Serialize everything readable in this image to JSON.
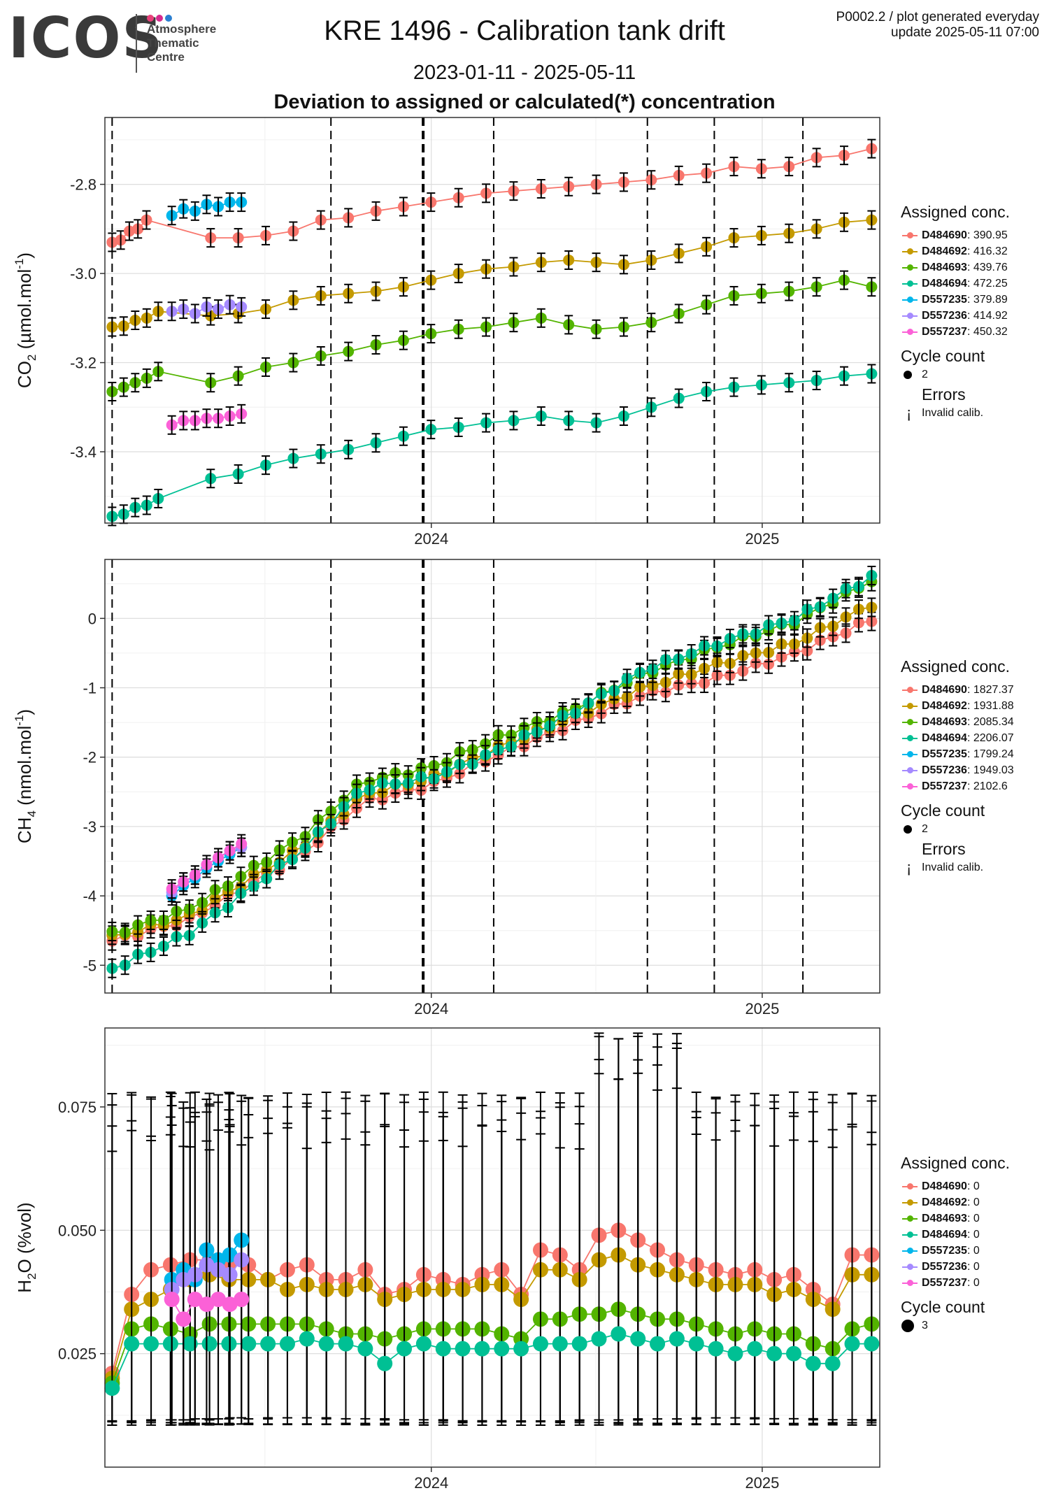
{
  "header": {
    "logo_text": "ICOS",
    "logo_lines": [
      "Atmosphere",
      "Thematic",
      "Centre"
    ],
    "logo_dot_colors": [
      "#e8417a",
      "#d62a8f",
      "#2b7fd1"
    ],
    "title": "KRE 1496 - Calibration tank drift",
    "date_range": "2023-01-11 - 2025-05-11",
    "subtitle": "Deviation to assigned or calculated(*) concentration",
    "gen_line1": "P0002.2 / plot generated everyday",
    "gen_line2": "update  2025-05-11 07:00"
  },
  "series_colors": {
    "D484690": "#F8766D",
    "D484692": "#C49A00",
    "D484693": "#53B400",
    "D484694": "#00C094",
    "D557235": "#00B6EB",
    "D557236": "#A58AFF",
    "D557237": "#FB61D7"
  },
  "chart_data": [
    {
      "type": "line",
      "ylabel": "CO2 (µmol.mol-1)",
      "ylabel_parts": {
        "pre": "CO",
        "sub": "2",
        "mid": " (µmol.mol",
        "sup": "-1",
        "post": ")"
      },
      "x_ticks": [
        "2024",
        "2025"
      ],
      "y_ticks": [
        -2.8,
        -3.0,
        -3.2,
        -3.4
      ],
      "y_tick_labels": [
        "-2.8",
        "-3.0",
        "-3.2",
        "-3.4"
      ],
      "ylim": [
        -3.56,
        -2.65
      ],
      "grid": true,
      "legend_position": "right",
      "vlines": [
        "2023-01-13",
        "2023-09-12",
        "2023-12-23",
        "2024-03-10",
        "2024-08-27",
        "2024-11-09",
        "2025-02-15"
      ],
      "vline_heavy": "2023-12-23",
      "series": [
        {
          "name": "D484690",
          "x0": "2023-01-13",
          "x1": "2023-02-20",
          "x2": "2023-05-02",
          "x3": "2025-05-02",
          "y": [
            -2.93,
            -2.925,
            -2.905,
            -2.9,
            -2.88
          ],
          "yb": [
            -2.92,
            -2.92,
            -2.915,
            -2.905,
            -2.88,
            -2.875,
            -2.86,
            -2.85,
            -2.84,
            -2.83,
            -2.82,
            -2.815,
            -2.81,
            -2.805,
            -2.8,
            -2.795,
            -2.79,
            -2.78,
            -2.775,
            -2.76,
            -2.765,
            -2.76,
            -2.74,
            -2.735,
            -2.72
          ]
        },
        {
          "name": "D484692",
          "y": [
            -3.12,
            -3.118,
            -3.105,
            -3.1,
            -3.085
          ],
          "yb": [
            -3.095,
            -3.09,
            -3.08,
            -3.06,
            -3.05,
            -3.045,
            -3.04,
            -3.03,
            -3.015,
            -3.0,
            -2.99,
            -2.985,
            -2.975,
            -2.97,
            -2.975,
            -2.98,
            -2.97,
            -2.955,
            -2.94,
            -2.92,
            -2.915,
            -2.91,
            -2.9,
            -2.885,
            -2.88
          ]
        },
        {
          "name": "D484693",
          "y": [
            -3.265,
            -3.255,
            -3.245,
            -3.235,
            -3.22
          ],
          "yb": [
            -3.245,
            -3.23,
            -3.21,
            -3.2,
            -3.185,
            -3.175,
            -3.16,
            -3.15,
            -3.135,
            -3.125,
            -3.12,
            -3.11,
            -3.1,
            -3.115,
            -3.125,
            -3.12,
            -3.11,
            -3.09,
            -3.07,
            -3.05,
            -3.045,
            -3.04,
            -3.03,
            -3.015,
            -3.03
          ]
        },
        {
          "name": "D484694",
          "y": [
            -3.545,
            -3.54,
            -3.525,
            -3.52,
            -3.505
          ],
          "yb": [
            -3.46,
            -3.45,
            -3.43,
            -3.415,
            -3.405,
            -3.395,
            -3.38,
            -3.365,
            -3.35,
            -3.345,
            -3.335,
            -3.33,
            -3.32,
            -3.33,
            -3.335,
            -3.32,
            -3.3,
            -3.28,
            -3.265,
            -3.255,
            -3.25,
            -3.245,
            -3.24,
            -3.23,
            -3.225
          ]
        },
        {
          "name": "D557235",
          "x0": "2023-03-20",
          "x1": "2023-06-05",
          "y": [
            -2.87,
            -2.855,
            -2.86,
            -2.845,
            -2.85,
            -2.84,
            -2.84
          ]
        },
        {
          "name": "D557236",
          "x0": "2023-03-20",
          "x1": "2023-06-05",
          "y": [
            -3.085,
            -3.08,
            -3.09,
            -3.075,
            -3.08,
            -3.07,
            -3.075
          ]
        },
        {
          "name": "D557237",
          "x0": "2023-03-20",
          "x1": "2023-06-05",
          "y": [
            -3.34,
            -3.33,
            -3.33,
            -3.325,
            -3.325,
            -3.32,
            -3.315
          ]
        }
      ],
      "legend": {
        "title": "Assigned conc.",
        "items": [
          {
            "name": "D484690",
            "value": ": 390.95"
          },
          {
            "name": "D484692",
            "value": ": 416.32"
          },
          {
            "name": "D484693",
            "value": ": 439.76"
          },
          {
            "name": "D484694",
            "value": ": 472.25"
          },
          {
            "name": "D557235",
            "value": ": 379.89"
          },
          {
            "name": "D557236",
            "value": ": 414.92"
          },
          {
            "name": "D557237",
            "value": ": 450.32"
          }
        ],
        "cycle_title": "Cycle count",
        "cycle_value": "2",
        "errors_title": "Errors",
        "errors_value": "Invalid calib."
      }
    },
    {
      "type": "line",
      "ylabel": "CH4 (nmol.mol-1)",
      "ylabel_parts": {
        "pre": "CH",
        "sub": "4",
        "mid": " (nmol.mol",
        "sup": "-1",
        "post": ")"
      },
      "x_ticks": [
        "2024",
        "2025"
      ],
      "y_ticks": [
        0,
        -1,
        -2,
        -3,
        -4,
        -5
      ],
      "y_tick_labels": [
        "0",
        "-1",
        "-2",
        "-3",
        "-4",
        "-5"
      ],
      "ylim": [
        -5.4,
        0.85
      ],
      "grid": true,
      "legend_position": "right",
      "vlines": [
        "2023-01-13",
        "2023-09-12",
        "2023-12-23",
        "2024-03-10",
        "2024-08-27",
        "2024-11-09",
        "2025-02-15"
      ],
      "vline_heavy": "2023-12-23",
      "series": [
        {
          "name": "D484690",
          "x0": "2023-01-13",
          "x1": "2025-05-02",
          "points": [
            [
              0,
              -4.65
            ],
            [
              0.1,
              -4.35
            ],
            [
              0.25,
              -3.4
            ],
            [
              0.33,
              -2.65
            ],
            [
              0.42,
              -2.4
            ],
            [
              0.5,
              -2.0
            ],
            [
              0.6,
              -1.55
            ],
            [
              0.7,
              -1.1
            ],
            [
              0.8,
              -0.85
            ],
            [
              0.9,
              -0.5
            ],
            [
              1.0,
              -0.02
            ]
          ]
        },
        {
          "name": "D484692",
          "points": [
            [
              0,
              -4.6
            ],
            [
              0.1,
              -4.3
            ],
            [
              0.25,
              -3.3
            ],
            [
              0.33,
              -2.55
            ],
            [
              0.42,
              -2.3
            ],
            [
              0.5,
              -1.9
            ],
            [
              0.6,
              -1.45
            ],
            [
              0.7,
              -1.0
            ],
            [
              0.8,
              -0.65
            ],
            [
              0.9,
              -0.35
            ],
            [
              1.0,
              0.2
            ]
          ]
        },
        {
          "name": "D484693",
          "points": [
            [
              0,
              -4.55
            ],
            [
              0.1,
              -4.2
            ],
            [
              0.25,
              -3.15
            ],
            [
              0.33,
              -2.35
            ],
            [
              0.42,
              -2.15
            ],
            [
              0.5,
              -1.75
            ],
            [
              0.6,
              -1.35
            ],
            [
              0.7,
              -0.8
            ],
            [
              0.8,
              -0.4
            ],
            [
              0.9,
              -0.05
            ],
            [
              1.0,
              0.55
            ]
          ]
        },
        {
          "name": "D484694",
          "points": [
            [
              0,
              -5.05
            ],
            [
              0.1,
              -4.55
            ],
            [
              0.25,
              -3.35
            ],
            [
              0.33,
              -2.45
            ],
            [
              0.42,
              -2.3
            ],
            [
              0.5,
              -1.95
            ],
            [
              0.6,
              -1.4
            ],
            [
              0.7,
              -0.75
            ],
            [
              0.8,
              -0.35
            ],
            [
              0.9,
              0.0
            ],
            [
              1.0,
              0.6
            ]
          ]
        },
        {
          "name": "D557235",
          "x0": "2023-03-20",
          "x1": "2023-06-05",
          "y": [
            -4.0,
            -3.85,
            -3.75,
            -3.6,
            -3.5,
            -3.4,
            -3.3
          ]
        },
        {
          "name": "D557236",
          "x0": "2023-03-20",
          "x1": "2023-06-05",
          "y": [
            -3.95,
            -3.8,
            -3.7,
            -3.55,
            -3.45,
            -3.35,
            -3.3
          ]
        },
        {
          "name": "D557237",
          "x0": "2023-03-20",
          "x1": "2023-06-05",
          "y": [
            -3.9,
            -3.8,
            -3.7,
            -3.55,
            -3.45,
            -3.35,
            -3.25
          ]
        }
      ],
      "legend": {
        "title": "Assigned conc.",
        "items": [
          {
            "name": "D484690",
            "value": ": 1827.37"
          },
          {
            "name": "D484692",
            "value": ": 1931.88"
          },
          {
            "name": "D484693",
            "value": ": 2085.34"
          },
          {
            "name": "D484694",
            "value": ": 2206.07"
          },
          {
            "name": "D557235",
            "value": ": 1799.24"
          },
          {
            "name": "D557236",
            "value": ": 1949.03"
          },
          {
            "name": "D557237",
            "value": ": 2102.6"
          }
        ],
        "cycle_title": "Cycle count",
        "cycle_value": "2",
        "errors_title": "Errors",
        "errors_value": "Invalid calib."
      }
    },
    {
      "type": "line",
      "ylabel": "H2O (%vol)",
      "ylabel_parts": {
        "pre": "H",
        "sub": "2",
        "mid": "O (%vol)",
        "sup": "",
        "post": ""
      },
      "x_ticks": [
        "2024",
        "2025"
      ],
      "y_ticks": [
        0.025,
        0.05,
        0.075
      ],
      "y_tick_labels": [
        "0.025",
        "0.050",
        "0.075"
      ],
      "ylim": [
        0.002,
        0.091
      ],
      "grid": true,
      "legend_position": "right",
      "error_low": 0.012,
      "error_high_base": 0.066,
      "series": [
        {
          "name": "D484690",
          "y": [
            0.021,
            0.037,
            0.042,
            0.043,
            0.044,
            0.044,
            0.043,
            0.043,
            0.04,
            0.042,
            0.043,
            0.04,
            0.04,
            0.042,
            0.037,
            0.038,
            0.041,
            0.04,
            0.039,
            0.041,
            0.042,
            0.037,
            0.046,
            0.045,
            0.042,
            0.049,
            0.05,
            0.048,
            0.046,
            0.044,
            0.043,
            0.042,
            0.041,
            0.042,
            0.04,
            0.041,
            0.038,
            0.035,
            0.045,
            0.045
          ]
        },
        {
          "name": "D484692",
          "y": [
            0.02,
            0.034,
            0.036,
            0.038,
            0.04,
            0.041,
            0.04,
            0.04,
            0.04,
            0.038,
            0.039,
            0.038,
            0.038,
            0.039,
            0.036,
            0.037,
            0.038,
            0.038,
            0.038,
            0.039,
            0.039,
            0.036,
            0.042,
            0.042,
            0.04,
            0.044,
            0.045,
            0.043,
            0.042,
            0.041,
            0.04,
            0.039,
            0.039,
            0.039,
            0.037,
            0.038,
            0.036,
            0.034,
            0.041,
            0.041
          ]
        },
        {
          "name": "D484693",
          "y": [
            0.019,
            0.03,
            0.031,
            0.03,
            0.029,
            0.031,
            0.031,
            0.031,
            0.031,
            0.031,
            0.031,
            0.03,
            0.029,
            0.029,
            0.028,
            0.029,
            0.03,
            0.03,
            0.03,
            0.03,
            0.029,
            0.028,
            0.032,
            0.032,
            0.033,
            0.033,
            0.034,
            0.033,
            0.032,
            0.032,
            0.031,
            0.03,
            0.029,
            0.03,
            0.029,
            0.029,
            0.027,
            0.026,
            0.03,
            0.031
          ]
        },
        {
          "name": "D484694",
          "y": [
            0.018,
            0.027,
            0.027,
            0.027,
            0.027,
            0.027,
            0.027,
            0.027,
            0.027,
            0.027,
            0.028,
            0.027,
            0.027,
            0.026,
            0.023,
            0.026,
            0.027,
            0.026,
            0.026,
            0.026,
            0.026,
            0.026,
            0.027,
            0.027,
            0.027,
            0.028,
            0.029,
            0.028,
            0.027,
            0.028,
            0.027,
            0.026,
            0.025,
            0.026,
            0.025,
            0.025,
            0.023,
            0.023,
            0.027,
            0.027
          ]
        },
        {
          "name": "D557235",
          "x0": "2023-03-20",
          "x1": "2023-06-05",
          "y": [
            0.04,
            0.042,
            0.04,
            0.046,
            0.044,
            0.045,
            0.048
          ]
        },
        {
          "name": "D557236",
          "x0": "2023-03-20",
          "x1": "2023-06-05",
          "y": [
            0.038,
            0.04,
            0.041,
            0.043,
            0.042,
            0.041,
            0.044
          ]
        },
        {
          "name": "D557237",
          "x0": "2023-03-20",
          "x1": "2023-06-05",
          "y": [
            0.036,
            0.032,
            0.036,
            0.035,
            0.036,
            0.035,
            0.036
          ]
        }
      ],
      "legend": {
        "title": "Assigned conc.",
        "items": [
          {
            "name": "D484690",
            "value": ": 0"
          },
          {
            "name": "D484692",
            "value": ": 0"
          },
          {
            "name": "D484693",
            "value": ": 0"
          },
          {
            "name": "D484694",
            "value": ": 0"
          },
          {
            "name": "D557235",
            "value": ": 0"
          },
          {
            "name": "D557236",
            "value": ": 0"
          },
          {
            "name": "D557237",
            "value": ": 0"
          }
        ],
        "cycle_title": "Cycle count",
        "cycle_value": "3"
      }
    }
  ]
}
